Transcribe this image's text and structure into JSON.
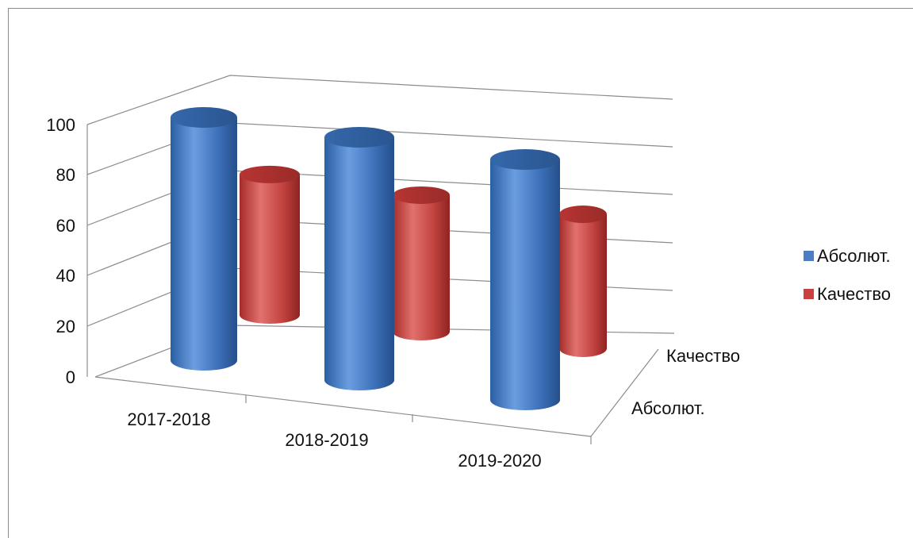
{
  "chart_data": {
    "type": "bar",
    "style": "3d-cylinder",
    "categories": [
      "2017-2018",
      "2018-2019",
      "2019-2020"
    ],
    "series": [
      {
        "name": "Абсолют.",
        "values": [
          100,
          100,
          100
        ],
        "color": "#4a7ec5"
      },
      {
        "name": "Качество",
        "values": [
          70,
          68,
          66
        ],
        "color": "#c9413e"
      }
    ],
    "y_ticks": [
      "0",
      "20",
      "40",
      "60",
      "80",
      "100"
    ],
    "depth_labels": [
      "Качество",
      "Абсолют."
    ],
    "ylim": [
      0,
      100
    ],
    "grid": true,
    "legend_position": "right"
  }
}
